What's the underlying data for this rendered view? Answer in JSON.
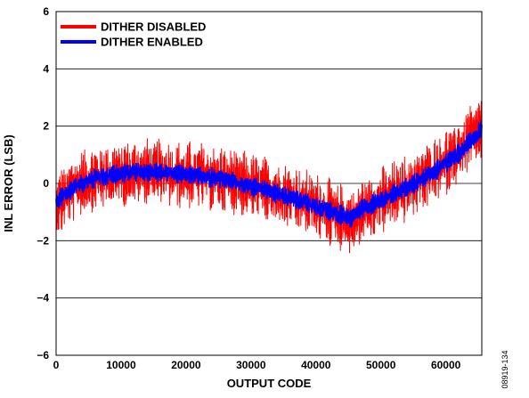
{
  "chart_data": {
    "type": "line",
    "title": "",
    "xlabel": "OUTPUT CODE",
    "ylabel": "INL ERROR (LSB)",
    "xlim": [
      0,
      65535
    ],
    "ylim": [
      -6,
      6
    ],
    "xticks": [
      0,
      10000,
      20000,
      30000,
      40000,
      50000,
      60000
    ],
    "yticks": [
      -6,
      -4,
      -2,
      0,
      2,
      4,
      6
    ],
    "ytick_labels": [
      "−6",
      "−4",
      "−2",
      "0",
      "2",
      "4",
      "6"
    ],
    "grid": "horizontal",
    "legend_position": "top-left",
    "series": [
      {
        "name": "DITHER DISABLED",
        "color": "#ff0000",
        "x": [
          0,
          3000,
          6000,
          9000,
          12000,
          15000,
          18000,
          21000,
          24000,
          27000,
          30000,
          33000,
          36000,
          39000,
          42000,
          44000,
          45500,
          47000,
          50000,
          53000,
          56000,
          59000,
          62000,
          64000,
          65535
        ],
        "y": [
          -0.8,
          -0.1,
          0.2,
          0.3,
          0.4,
          0.4,
          0.3,
          0.3,
          0.2,
          0.1,
          -0.1,
          -0.3,
          -0.5,
          -0.7,
          -1.0,
          -1.2,
          -1.4,
          -1.0,
          -0.6,
          -0.3,
          0.1,
          0.6,
          1.1,
          1.6,
          2.0
        ],
        "spread_lsb": 1.2
      },
      {
        "name": "DITHER ENABLED",
        "color": "#0000ff",
        "x": [
          0,
          3000,
          6000,
          9000,
          12000,
          15000,
          18000,
          21000,
          24000,
          27000,
          30000,
          33000,
          36000,
          39000,
          42000,
          44000,
          45500,
          47000,
          50000,
          53000,
          56000,
          59000,
          62000,
          64000,
          65535
        ],
        "y": [
          -0.6,
          -0.1,
          0.2,
          0.3,
          0.4,
          0.4,
          0.35,
          0.3,
          0.2,
          0.1,
          -0.1,
          -0.3,
          -0.5,
          -0.7,
          -0.95,
          -1.1,
          -1.25,
          -0.9,
          -0.55,
          -0.25,
          0.1,
          0.55,
          1.05,
          1.5,
          1.9
        ],
        "spread_lsb": 0.35
      }
    ]
  },
  "figure_id": "08919-134"
}
